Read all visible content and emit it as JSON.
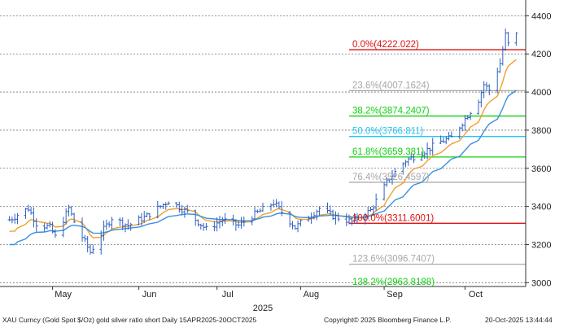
{
  "chart_data": {
    "type": "candlestick",
    "title": "",
    "ylim": [
      2980,
      4470
    ],
    "y_ticks": [
      3000,
      3200,
      3400,
      3600,
      3800,
      4000,
      4200,
      4400
    ],
    "y_tick_labels": [
      "3000",
      "3200",
      "3400",
      "3600",
      "3800",
      "4000",
      "4200",
      "4400"
    ],
    "x_month_labels": [
      {
        "label": "May",
        "date": "2025-05-01"
      },
      {
        "label": "Jun",
        "date": "2025-06-02"
      },
      {
        "label": "Jul",
        "date": "2025-07-01"
      },
      {
        "label": "Aug",
        "date": "2025-08-01"
      },
      {
        "label": "Sep",
        "date": "2025-09-01"
      },
      {
        "label": "Oct",
        "date": "2025-10-01"
      }
    ],
    "year_label": "2025",
    "date_range": [
      "2025-04-15",
      "2025-10-20"
    ],
    "price_keypoints": [
      [
        "2025-04-15",
        3330
      ],
      [
        "2025-04-22",
        3390
      ],
      [
        "2025-04-25",
        3310
      ],
      [
        "2025-04-30",
        3290
      ],
      [
        "2025-05-02",
        3240
      ],
      [
        "2025-05-07",
        3390
      ],
      [
        "2025-05-09",
        3320
      ],
      [
        "2025-05-15",
        3160
      ],
      [
        "2025-05-20",
        3280
      ],
      [
        "2025-05-23",
        3340
      ],
      [
        "2025-05-29",
        3300
      ],
      [
        "2025-06-05",
        3350
      ],
      [
        "2025-06-13",
        3430
      ],
      [
        "2025-06-20",
        3370
      ],
      [
        "2025-06-27",
        3280
      ],
      [
        "2025-07-03",
        3330
      ],
      [
        "2025-07-09",
        3300
      ],
      [
        "2025-07-14",
        3350
      ],
      [
        "2025-07-22",
        3420
      ],
      [
        "2025-07-30",
        3290
      ],
      [
        "2025-08-08",
        3390
      ],
      [
        "2025-08-13",
        3350
      ],
      [
        "2025-08-20",
        3320
      ],
      [
        "2025-08-27",
        3380
      ],
      [
        "2025-09-03",
        3550
      ],
      [
        "2025-09-09",
        3640
      ],
      [
        "2025-09-16",
        3690
      ],
      [
        "2025-09-22",
        3740
      ],
      [
        "2025-09-26",
        3760
      ],
      [
        "2025-10-01",
        3860
      ],
      [
        "2025-10-06",
        3960
      ],
      [
        "2025-10-08",
        4040
      ],
      [
        "2025-10-10",
        4010
      ],
      [
        "2025-10-14",
        4150
      ],
      [
        "2025-10-16",
        4300
      ],
      [
        "2025-10-17",
        4250
      ],
      [
        "2025-10-20",
        4300
      ]
    ],
    "series": [
      {
        "name": "",
        "color": "#f0a030"
      },
      {
        "name": "",
        "color": "#3a8fe0"
      }
    ],
    "price_bar_color": "#3060c0",
    "fib_levels": [
      {
        "label": "0.0%(4222.022)",
        "value": 4222.022,
        "color": "#e01010",
        "line_style": "solid"
      },
      {
        "label": "23.6%(4007.1624)",
        "value": 4007.1624,
        "color": "#a8a8a8",
        "line_style": "solid"
      },
      {
        "label": "38.2%(3874.2407)",
        "value": 3874.2407,
        "color": "#10d010",
        "line_style": "solid"
      },
      {
        "label": "50.0%(3766.811)",
        "value": 3766.811,
        "color": "#20c8f0",
        "line_style": "solid"
      },
      {
        "label": "61.8%(3659.381)",
        "value": 3659.381,
        "color": "#10d010",
        "line_style": "solid"
      },
      {
        "label": "76.4%(3526.4597)",
        "value": 3526.4597,
        "color": "#a8a8a8",
        "line_style": "solid"
      },
      {
        "label": "100.0%(3311.6001)",
        "value": 3311.6001,
        "color": "#e01010",
        "line_style": "solid"
      },
      {
        "label": "123.6%(3096.7407)",
        "value": 3096.7407,
        "color": "#a8a8a8",
        "line_style": "solid"
      },
      {
        "label": "138.2%(2963.8188)",
        "value": 2963.8188,
        "color": "#10d010",
        "line_style": "solid"
      }
    ],
    "grid_lines": [
      3000,
      3200,
      3400,
      3600,
      3800,
      4000,
      4200,
      4400
    ],
    "grid": true
  },
  "footer": {
    "left": "XAU Curncy (Gold Spot  $/Oz) gold silver ratio short Daily 15APR2025-20OCT2025",
    "middle": "Copyright© 2025 Bloomberg Finance L.P.",
    "right": "20-Oct-2025 13:44:44"
  }
}
